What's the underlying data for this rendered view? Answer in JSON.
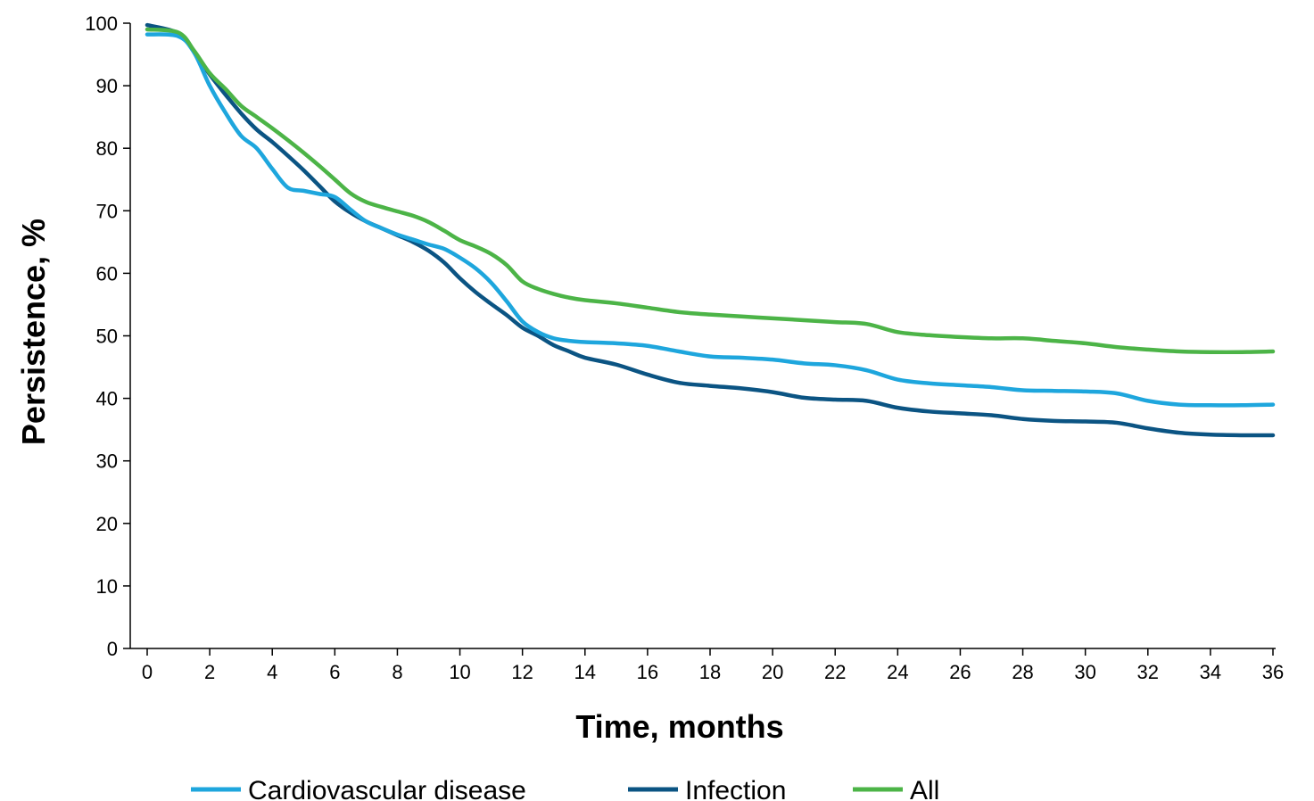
{
  "chart_data": {
    "type": "line",
    "title": "",
    "xlabel": "Time, months",
    "ylabel": "Persistence, %",
    "xlim": [
      0,
      36
    ],
    "ylim": [
      0,
      100
    ],
    "x_ticks": [
      0,
      2,
      4,
      6,
      8,
      10,
      12,
      14,
      16,
      18,
      20,
      22,
      24,
      26,
      28,
      30,
      32,
      34,
      36
    ],
    "y_ticks": [
      0,
      10,
      20,
      30,
      40,
      50,
      60,
      70,
      80,
      90,
      100
    ],
    "grid": false,
    "legend_position": "bottom",
    "series": [
      {
        "name": "Cardiovascular disease",
        "color": "#1ea6dd",
        "x": [
          0,
          1,
          1.5,
          2,
          2.5,
          3,
          3.5,
          4,
          4.5,
          5,
          5.5,
          6,
          6.5,
          7,
          7.5,
          8,
          8.5,
          9,
          9.5,
          10,
          10.5,
          11,
          11.5,
          12,
          12.5,
          13,
          13.5,
          14,
          15,
          16,
          17,
          18,
          19,
          20,
          21,
          22,
          23,
          24,
          25,
          26,
          27,
          28,
          29,
          30,
          31,
          32,
          33,
          34,
          35,
          36
        ],
        "y": [
          98.2,
          97.9,
          95.3,
          90.0,
          85.7,
          82.0,
          80.0,
          76.7,
          73.7,
          73.2,
          72.7,
          72.2,
          70.2,
          68.3,
          67.2,
          66.2,
          65.4,
          64.6,
          63.9,
          62.5,
          60.8,
          58.5,
          55.5,
          52.3,
          50.6,
          49.6,
          49.2,
          49.0,
          48.8,
          48.4,
          47.5,
          46.7,
          46.5,
          46.2,
          45.6,
          45.3,
          44.5,
          43.0,
          42.4,
          42.1,
          41.8,
          41.3,
          41.2,
          41.1,
          40.8,
          39.6,
          39.0,
          38.9,
          38.9,
          39.0
        ]
      },
      {
        "name": "Infection",
        "color": "#0b5483",
        "x": [
          0,
          1,
          1.5,
          2,
          2.5,
          3,
          3.5,
          4,
          4.5,
          5,
          5.5,
          6,
          6.5,
          7,
          7.5,
          8,
          8.5,
          9,
          9.5,
          10,
          10.5,
          11,
          11.5,
          12,
          12.5,
          13,
          13.5,
          14,
          15,
          16,
          17,
          18,
          19,
          20,
          21,
          22,
          23,
          24,
          25,
          26,
          27,
          28,
          29,
          30,
          31,
          32,
          33,
          34,
          35,
          36
        ],
        "y": [
          99.7,
          98.4,
          95.5,
          91.8,
          88.6,
          85.6,
          83.0,
          81.0,
          78.8,
          76.5,
          74.0,
          71.5,
          69.7,
          68.3,
          67.2,
          66.1,
          65.0,
          63.6,
          61.7,
          59.2,
          57.0,
          55.1,
          53.3,
          51.3,
          50.0,
          48.5,
          47.5,
          46.5,
          45.4,
          43.8,
          42.5,
          42.0,
          41.6,
          41.0,
          40.1,
          39.8,
          39.6,
          38.5,
          37.9,
          37.6,
          37.3,
          36.7,
          36.4,
          36.3,
          36.1,
          35.2,
          34.5,
          34.2,
          34.1,
          34.1
        ]
      },
      {
        "name": "All",
        "color": "#4cb447",
        "x": [
          0,
          1,
          1.5,
          2,
          2.5,
          3,
          3.5,
          4,
          4.5,
          5,
          5.5,
          6,
          6.5,
          7,
          7.5,
          8,
          8.5,
          9,
          9.5,
          10,
          10.5,
          11,
          11.5,
          12,
          12.5,
          13,
          13.5,
          14,
          15,
          16,
          17,
          18,
          19,
          20,
          21,
          22,
          23,
          24,
          25,
          26,
          27,
          28,
          29,
          30,
          31,
          32,
          33,
          34,
          35,
          36
        ],
        "y": [
          99.0,
          98.5,
          95.6,
          92.0,
          89.5,
          86.8,
          85.0,
          83.2,
          81.3,
          79.3,
          77.2,
          75.0,
          72.8,
          71.4,
          70.6,
          69.9,
          69.2,
          68.2,
          66.8,
          65.3,
          64.3,
          63.1,
          61.3,
          58.7,
          57.5,
          56.7,
          56.1,
          55.7,
          55.2,
          54.5,
          53.8,
          53.4,
          53.1,
          52.8,
          52.5,
          52.2,
          51.9,
          50.6,
          50.1,
          49.8,
          49.6,
          49.6,
          49.2,
          48.8,
          48.2,
          47.8,
          47.5,
          47.4,
          47.4,
          47.5
        ]
      }
    ]
  }
}
